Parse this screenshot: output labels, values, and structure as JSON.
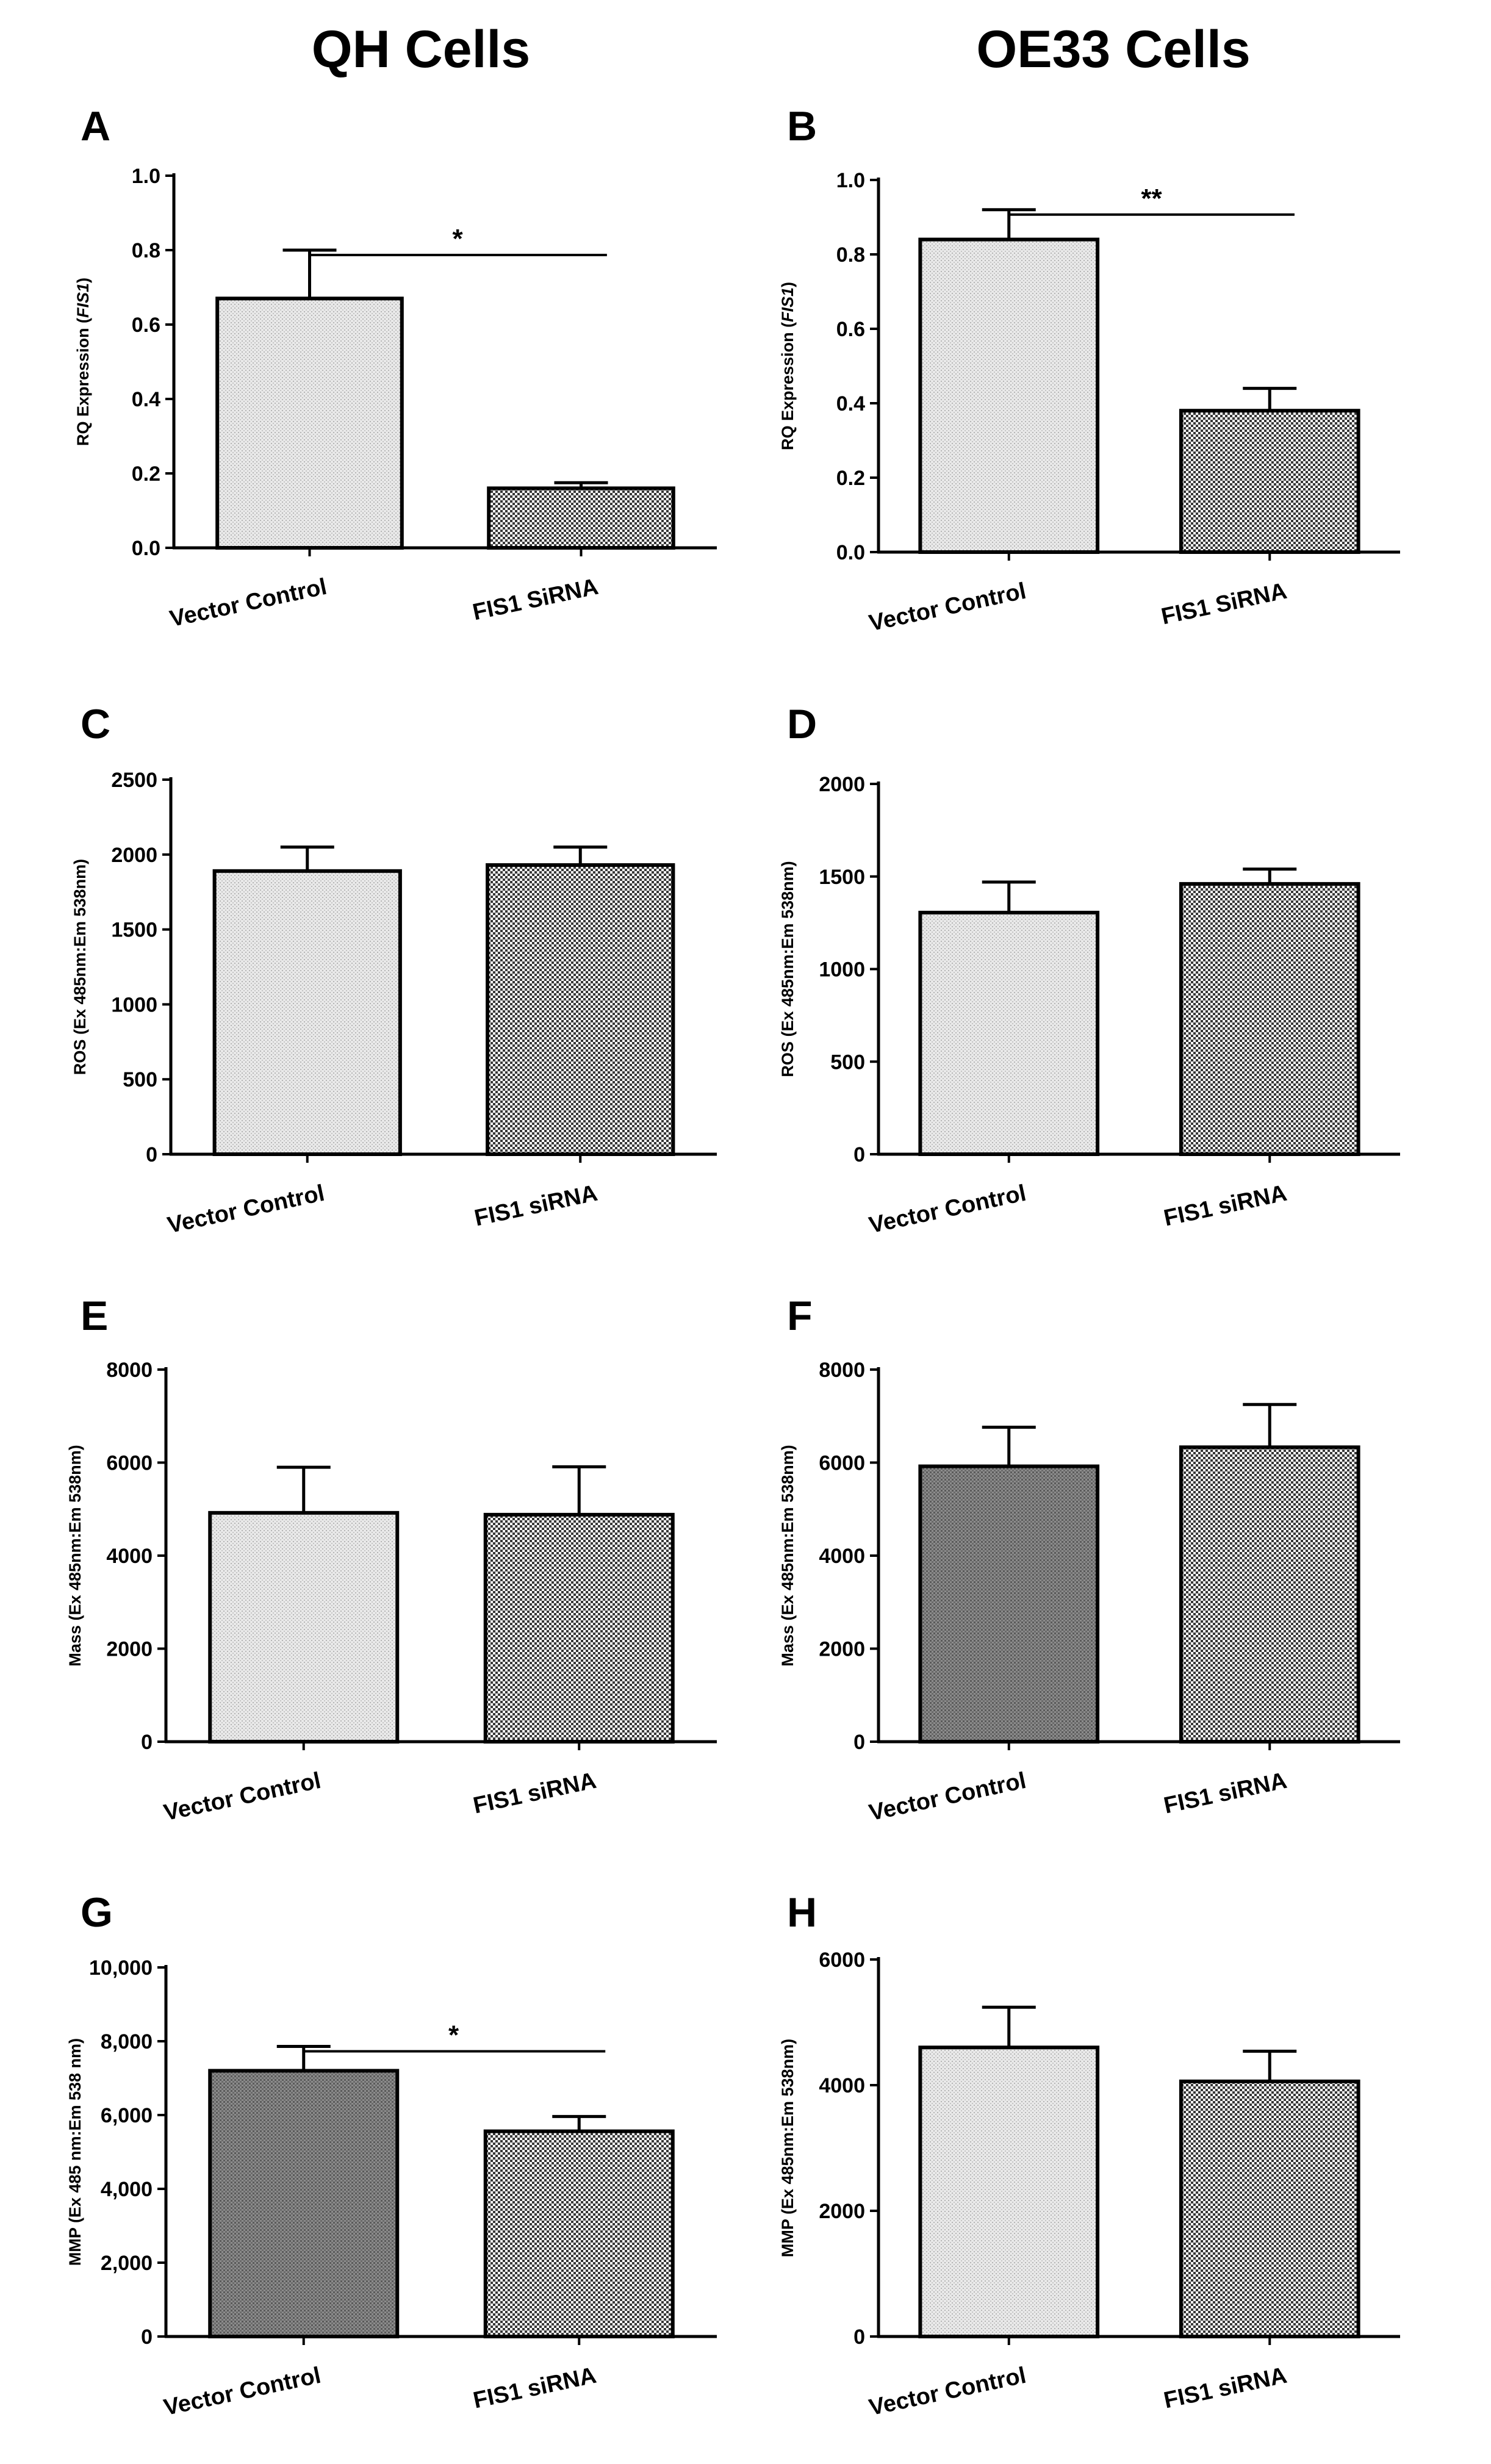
{
  "column_titles": [
    "QH Cells",
    "OE33 Cells"
  ],
  "chart_data": [
    {
      "panel": "A",
      "type": "bar",
      "categories": [
        "Vector Control",
        "FIS1 SiRNA"
      ],
      "values": [
        0.67,
        0.16
      ],
      "errors": [
        0.13,
        0.015
      ],
      "ylabel_prefix": "RQ Expression (",
      "ylabel_gene": "FIS1",
      "ylabel_suffix": ")",
      "ylim": [
        0,
        1.0
      ],
      "ticks": [
        0,
        0.2,
        0.4,
        0.6,
        0.8,
        1.0
      ],
      "tick_labels": [
        "0.0",
        "0.2",
        "0.4",
        "0.6",
        "0.8",
        "1.0"
      ],
      "patterns": [
        "light",
        "check"
      ],
      "significance": "*"
    },
    {
      "panel": "B",
      "type": "bar",
      "categories": [
        "Vector Control",
        "FIS1 SiRNA"
      ],
      "values": [
        0.84,
        0.38
      ],
      "errors": [
        0.08,
        0.06
      ],
      "ylabel_prefix": "RQ Expression (",
      "ylabel_gene": "FIS1",
      "ylabel_suffix": ")",
      "ylim": [
        0,
        1.0
      ],
      "ticks": [
        0,
        0.2,
        0.4,
        0.6,
        0.8,
        1.0
      ],
      "tick_labels": [
        "0.0",
        "0.2",
        "0.4",
        "0.6",
        "0.8",
        "1.0"
      ],
      "patterns": [
        "light",
        "check"
      ],
      "significance": "**"
    },
    {
      "panel": "C",
      "type": "bar",
      "categories": [
        "Vector Control",
        "FIS1 siRNA"
      ],
      "values": [
        1890,
        1930
      ],
      "errors": [
        160,
        120
      ],
      "ylabel": "ROS (Ex 485nm:Em 538nm)",
      "ylim": [
        0,
        2500
      ],
      "ticks": [
        0,
        500,
        1000,
        1500,
        2000,
        2500
      ],
      "tick_labels": [
        "0",
        "500",
        "1000",
        "1500",
        "2000",
        "2500"
      ],
      "patterns": [
        "light",
        "check"
      ],
      "significance": null
    },
    {
      "panel": "D",
      "type": "bar",
      "categories": [
        "Vector Control",
        "FIS1 siRNA"
      ],
      "values": [
        1305,
        1460
      ],
      "errors": [
        165,
        80
      ],
      "ylabel": "ROS (Ex 485nm:Em 538nm)",
      "ylim": [
        0,
        2000
      ],
      "ticks": [
        0,
        500,
        1000,
        1500,
        2000
      ],
      "tick_labels": [
        "0",
        "500",
        "1000",
        "1500",
        "2000"
      ],
      "patterns": [
        "light",
        "check"
      ],
      "significance": null
    },
    {
      "panel": "E",
      "type": "bar",
      "categories": [
        "Vector Control",
        "FIS1 siRNA"
      ],
      "values": [
        4920,
        4880
      ],
      "errors": [
        980,
        1030
      ],
      "ylabel": "Mass (Ex 485nm:Em 538nm)",
      "ylim": [
        0,
        8000
      ],
      "ticks": [
        0,
        2000,
        4000,
        6000,
        8000
      ],
      "tick_labels": [
        "0",
        "2000",
        "4000",
        "6000",
        "8000"
      ],
      "patterns": [
        "light",
        "check"
      ],
      "significance": null
    },
    {
      "panel": "F",
      "type": "bar",
      "categories": [
        "Vector Control",
        "FIS1 siRNA"
      ],
      "values": [
        5920,
        6330
      ],
      "errors": [
        840,
        920
      ],
      "ylabel": "Mass (Ex 485nm:Em 538nm)",
      "ylim": [
        0,
        8000
      ],
      "ticks": [
        0,
        2000,
        4000,
        6000,
        8000
      ],
      "tick_labels": [
        "0",
        "2000",
        "4000",
        "6000",
        "8000"
      ],
      "patterns": [
        "dark",
        "check"
      ],
      "significance": null
    },
    {
      "panel": "G",
      "type": "bar",
      "categories": [
        "Vector Control",
        "FIS1 siRNA"
      ],
      "values": [
        7200,
        5560
      ],
      "errors": [
        660,
        400
      ],
      "ylabel": "MMP (Ex 485 nm:Em 538 nm)",
      "ylim": [
        0,
        10000
      ],
      "ticks": [
        0,
        2000,
        4000,
        6000,
        8000,
        10000
      ],
      "tick_labels": [
        "0",
        "2,000",
        "4,000",
        "6,000",
        "8,000",
        "10,000"
      ],
      "patterns": [
        "dark",
        "check"
      ],
      "significance": "*"
    },
    {
      "panel": "H",
      "type": "bar",
      "categories": [
        "Vector Control",
        "FIS1 siRNA"
      ],
      "values": [
        4600,
        4060
      ],
      "errors": [
        640,
        480
      ],
      "ylabel": "MMP (Ex 485nm:Em 538nm)",
      "ylim": [
        0,
        6000
      ],
      "ticks": [
        0,
        2000,
        4000,
        6000
      ],
      "tick_labels": [
        "0",
        "2000",
        "4000",
        "6000"
      ],
      "patterns": [
        "light",
        "check"
      ],
      "significance": null
    }
  ]
}
